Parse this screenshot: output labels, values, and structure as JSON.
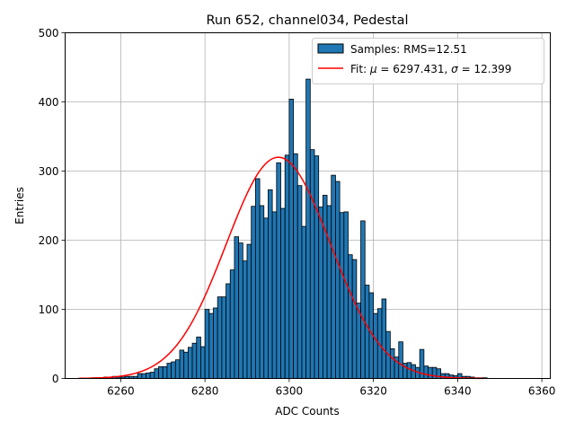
{
  "chart_data": {
    "type": "bar",
    "title": "Run 652, channel034, Pedestal",
    "xlabel": "ADC Counts",
    "ylabel": "Entries",
    "xlim": [
      6246.8,
      6362.0
    ],
    "ylim": [
      0,
      500
    ],
    "xticks": [
      6260,
      6280,
      6300,
      6320,
      6340,
      6360
    ],
    "yticks": [
      0,
      100,
      200,
      300,
      400,
      500
    ],
    "grid": true,
    "legend_position": "top-right",
    "legend": {
      "samples_label": "Samples: RMS=12.51",
      "fit_prefix": "Fit: ",
      "mu_symbol": "μ",
      "mu_text": " = 6297.431, ",
      "sigma_symbol": "σ",
      "sigma_text": " = 12.399"
    },
    "bar_color": "#1f77b4",
    "fit_color": "#ff0000",
    "histogram": {
      "bin_start": 6253,
      "bin_width": 1,
      "counts": [
        1,
        1,
        1,
        2,
        2,
        3,
        2,
        2,
        3,
        3,
        3,
        7,
        7,
        8,
        9,
        14,
        17,
        17,
        22,
        24,
        27,
        41,
        38,
        45,
        51,
        60,
        46,
        100,
        94,
        102,
        118,
        118,
        137,
        157,
        205,
        196,
        170,
        194,
        249,
        289,
        250,
        232,
        273,
        241,
        312,
        246,
        323,
        404,
        325,
        279,
        220,
        433,
        331,
        322,
        248,
        265,
        250,
        294,
        285,
        240,
        241,
        179,
        172,
        109,
        228,
        135,
        124,
        94,
        101,
        115,
        68,
        43,
        31,
        53,
        22,
        23,
        20,
        16,
        42,
        18,
        16,
        16,
        14,
        7,
        7,
        5,
        4,
        7,
        3,
        3,
        2,
        1,
        1,
        1
      ]
    },
    "fit": {
      "mu": 6297.431,
      "sigma": 12.399,
      "amplitude": 320,
      "x_range": [
        6250,
        6346
      ]
    }
  }
}
